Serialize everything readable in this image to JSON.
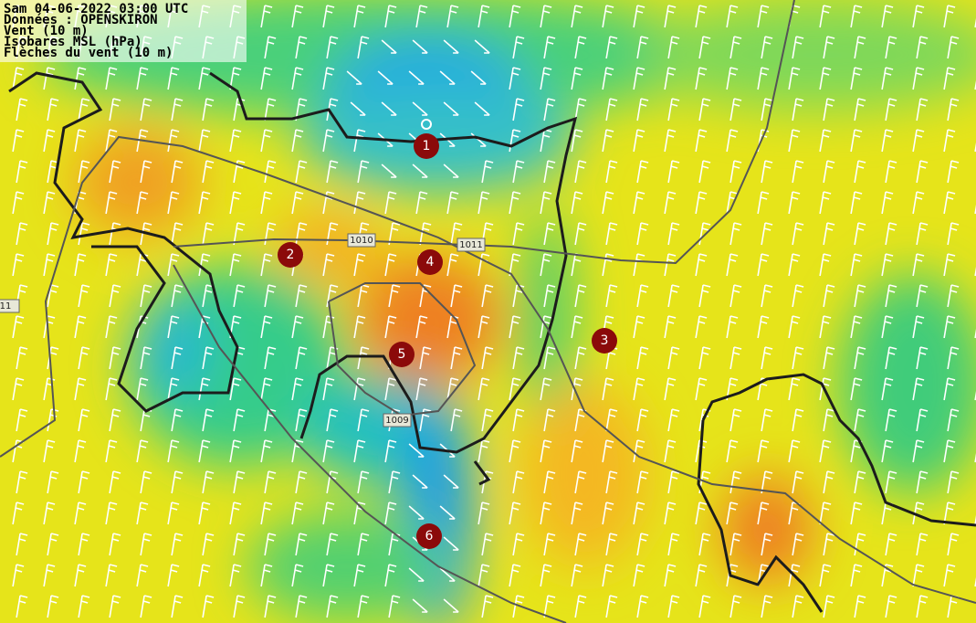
{
  "header": {
    "lines": [
      "Sam 04-06-2022 03:00 UTC",
      "Données : OPENSKIRON",
      "Vent (10 m)",
      "Isobares MSL (hPa)",
      "Flèches du vent (10 m)"
    ]
  },
  "isobar_labels": [
    1010,
    1011,
    1009,
    11
  ],
  "markers": [
    1,
    2,
    3,
    4,
    5,
    6
  ]
}
